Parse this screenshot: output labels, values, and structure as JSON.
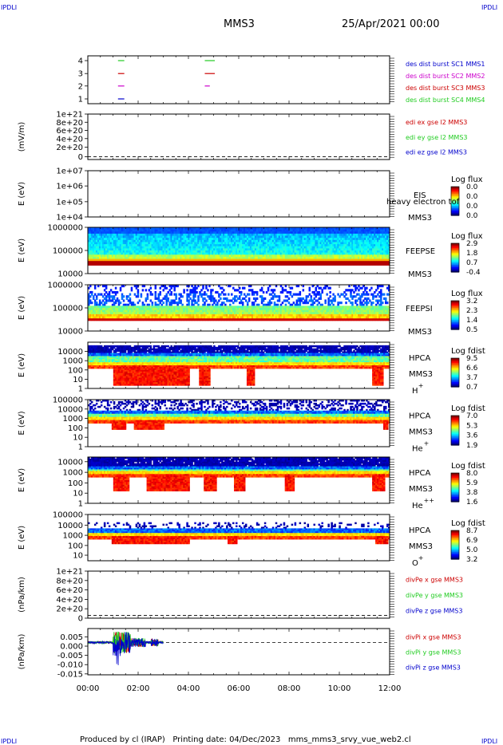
{
  "corner_label": "IPDLI",
  "header": {
    "spacecraft": "MMS3",
    "datetime": "25/Apr/2021 00:00"
  },
  "footer": {
    "text": "Produced by cl (IRAP)   Printing date: 04/Dec/2023   mms_mms3_srvy_vue_web2.cl"
  },
  "time_axis": {
    "labels": [
      "00:00",
      "02:00",
      "04:00",
      "06:00",
      "08:00",
      "10:00",
      "12:00"
    ],
    "range_hours": [
      0,
      12
    ]
  },
  "colors": {
    "red": "#cc0000",
    "green": "#22cc22",
    "blue": "#0000cc",
    "magenta": "#cc00cc",
    "border": "#000000"
  },
  "chart_data": [
    {
      "id": "burst",
      "type": "scatter",
      "ylabel": "",
      "yticks": [
        "4",
        "3",
        "2",
        "1"
      ],
      "legend": [
        {
          "text": "des dist burst SC1 MMS1",
          "color": "#0000cc"
        },
        {
          "text": "des dist burst SC2 MMS2",
          "color": "#cc00cc"
        },
        {
          "text": "des dist burst SC3 MMS3",
          "color": "#cc0000"
        },
        {
          "text": "des dist burst SC4 MMS4",
          "color": "#22cc22"
        }
      ],
      "segments": [
        {
          "sc": 4,
          "t0": 1.2,
          "t1": 1.45,
          "color": "#22cc22"
        },
        {
          "sc": 4,
          "t0": 4.65,
          "t1": 5.05,
          "color": "#22cc22"
        },
        {
          "sc": 3,
          "t0": 1.2,
          "t1": 1.45,
          "color": "#cc0000"
        },
        {
          "sc": 3,
          "t0": 4.65,
          "t1": 5.05,
          "color": "#cc0000"
        },
        {
          "sc": 2,
          "t0": 1.2,
          "t1": 1.45,
          "color": "#cc00cc"
        },
        {
          "sc": 2,
          "t0": 4.65,
          "t1": 4.85,
          "color": "#cc00cc"
        },
        {
          "sc": 1,
          "t0": 1.2,
          "t1": 1.45,
          "color": "#0000cc"
        }
      ]
    },
    {
      "id": "edi",
      "type": "line",
      "ylabel": "(mV/m)",
      "yticks": [
        "1e+21",
        "8e+20",
        "6e+20",
        "4e+20",
        "2e+20",
        "0"
      ],
      "legend": [
        {
          "text": "edi ex gse l2 MMS3",
          "color": "#cc0000"
        },
        {
          "text": "edi ey gse l2 MMS3",
          "color": "#22cc22"
        },
        {
          "text": "edi ez gse l2 MMS3",
          "color": "#0000cc"
        }
      ]
    },
    {
      "id": "eis",
      "type": "heatmap",
      "ylabel": "E (eV)",
      "yticks": [
        "1e+07",
        "1e+06",
        "1e+05",
        "1e+04"
      ],
      "instrument": "EIS",
      "spacecraft": "MMS3",
      "overlay": "heavy electron tof",
      "colorbar": {
        "title": "Log flux",
        "ticks": [
          "0.0",
          "0.0",
          "0.0",
          "0.0"
        ]
      }
    },
    {
      "id": "feepse",
      "type": "heatmap",
      "ylabel": "E (eV)",
      "yticks": [
        "1000000",
        "100000",
        "10000"
      ],
      "instrument": "FEEPSE",
      "spacecraft": "MMS3",
      "colorbar": {
        "title": "Log flux",
        "ticks": [
          "2.9",
          "1.8",
          "0.7",
          "-0.4"
        ]
      }
    },
    {
      "id": "feepsi",
      "type": "heatmap",
      "ylabel": "E (eV)",
      "yticks": [
        "1000000",
        "100000",
        "10000"
      ],
      "instrument": "FEEPSI",
      "spacecraft": "MMS3",
      "colorbar": {
        "title": "Log flux",
        "ticks": [
          "3.2",
          "2.3",
          "1.4",
          "0.5"
        ]
      }
    },
    {
      "id": "hpca_h",
      "type": "heatmap",
      "ylabel": "E (eV)",
      "yticks": [
        "10000",
        "1000",
        "100",
        "10",
        "1"
      ],
      "instrument": "HPCA",
      "spacecraft": "MMS3",
      "species": "H",
      "charge": "+",
      "colorbar": {
        "title": "Log fdist",
        "ticks": [
          "9.5",
          "6.6",
          "3.7",
          "0.7"
        ]
      }
    },
    {
      "id": "hpca_he",
      "type": "heatmap",
      "ylabel": "E (eV)",
      "yticks": [
        "100000",
        "10000",
        "1000",
        "100",
        "10",
        "1"
      ],
      "instrument": "HPCA",
      "spacecraft": "MMS3",
      "species": "He",
      "charge": "+",
      "colorbar": {
        "title": "Log fdist",
        "ticks": [
          "7.0",
          "5.3",
          "3.6",
          "1.9"
        ]
      }
    },
    {
      "id": "hpca_hepp",
      "type": "heatmap",
      "ylabel": "E (eV)",
      "yticks": [
        "10000",
        "1000",
        "100",
        "10",
        "1"
      ],
      "instrument": "HPCA",
      "spacecraft": "MMS3",
      "species": "He",
      "charge": "++",
      "colorbar": {
        "title": "Log fdist",
        "ticks": [
          "8.0",
          "5.9",
          "3.8",
          "1.6"
        ]
      }
    },
    {
      "id": "hpca_o",
      "type": "heatmap",
      "ylabel": "E (eV)",
      "yticks": [
        "100000",
        "10000",
        "1000",
        "100",
        "10"
      ],
      "instrument": "HPCA",
      "spacecraft": "MMS3",
      "species": "O",
      "charge": "+",
      "colorbar": {
        "title": "Log fdist",
        "ticks": [
          "8.7",
          "6.9",
          "5.0",
          "3.2"
        ]
      }
    },
    {
      "id": "divpe",
      "type": "line",
      "ylabel": "(nPa/km)",
      "yticks": [
        "1e+21",
        "8e+20",
        "6e+20",
        "4e+20",
        "2e+20",
        "0"
      ],
      "legend": [
        {
          "text": "divPe x gse MMS3",
          "color": "#cc0000"
        },
        {
          "text": "divPe y gse MMS3",
          "color": "#22cc22"
        },
        {
          "text": "divPe z gse MMS3",
          "color": "#0000cc"
        }
      ]
    },
    {
      "id": "divpi",
      "type": "line",
      "ylabel": "(nPa/km)",
      "yticks": [
        "0.005",
        "0.000",
        "-0.005",
        "-0.010",
        "-0.015"
      ],
      "ylim": [
        -0.0175,
        0.0075
      ],
      "data_end_hour": 3.0,
      "legend": [
        {
          "text": "divPi x gse MMS3",
          "color": "#cc0000"
        },
        {
          "text": "divPi y gse MMS3",
          "color": "#22cc22"
        },
        {
          "text": "divPi z gse MMS3",
          "color": "#0000cc"
        }
      ]
    }
  ]
}
